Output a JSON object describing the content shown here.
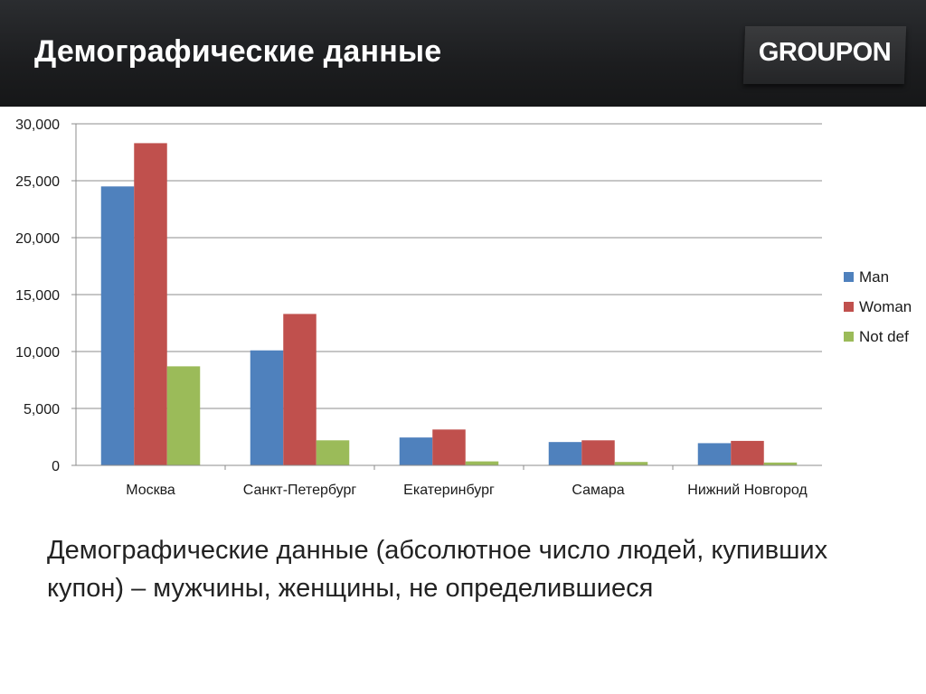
{
  "header": {
    "title": "Демографические данные",
    "logo": "GROUPON"
  },
  "caption": "Демографические данные (абсолютное число людей, купивших купон) – мужчины, женщины, не определившиеся",
  "chart_data": {
    "type": "bar",
    "categories": [
      "Москва",
      "Санкт-Петербург",
      "Екатеринбург",
      "Самара",
      "Нижний Новгород"
    ],
    "series": [
      {
        "name": "Man",
        "color": "#4f81bd",
        "values": [
          24500,
          10100,
          2450,
          2050,
          1950
        ]
      },
      {
        "name": "Woman",
        "color": "#c0504d",
        "values": [
          28300,
          13300,
          3150,
          2200,
          2150
        ]
      },
      {
        "name": "Not def",
        "color": "#9bbb59",
        "values": [
          8700,
          2200,
          350,
          300,
          250
        ]
      }
    ],
    "ylim": [
      0,
      30000
    ],
    "yticks": [
      "0",
      "5,000",
      "10,000",
      "15,000",
      "20,000",
      "25,000",
      "30,000"
    ],
    "grid": true,
    "legend_position": "right"
  }
}
